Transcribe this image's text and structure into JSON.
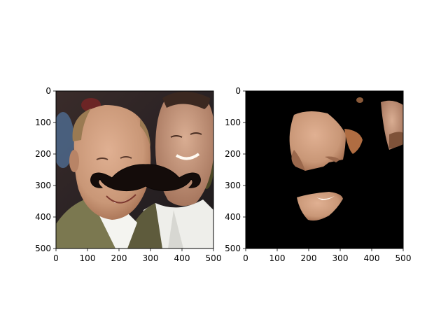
{
  "chart_data": [
    {
      "type": "image",
      "panel": "left",
      "content": "photo of two smiling men with a black cartoon mustache overlaid across the left man's face",
      "overlay": "mustache",
      "xlim": [
        0,
        500
      ],
      "ylim": [
        500,
        0
      ],
      "xticks": [
        0,
        100,
        200,
        300,
        400,
        500
      ],
      "yticks": [
        0,
        100,
        200,
        300,
        400,
        500
      ],
      "xtick_labels": [
        "0",
        "100",
        "200",
        "300",
        "400",
        "500"
      ],
      "ytick_labels": [
        "0",
        "100",
        "200",
        "300",
        "400",
        "500"
      ],
      "title": "",
      "xlabel": "",
      "ylabel": ""
    },
    {
      "type": "image",
      "panel": "right",
      "content": "segmentation mask: skin regions of the faces kept, everything else black; mustache area masked out",
      "background_color": "#000000",
      "xlim": [
        0,
        500
      ],
      "ylim": [
        500,
        0
      ],
      "xticks": [
        0,
        100,
        200,
        300,
        400,
        500
      ],
      "yticks": [
        0,
        100,
        200,
        300,
        400,
        500
      ],
      "xtick_labels": [
        "0",
        "100",
        "200",
        "300",
        "400",
        "500"
      ],
      "ytick_labels": [
        "0",
        "100",
        "200",
        "300",
        "400",
        "500"
      ],
      "title": "",
      "xlabel": "",
      "ylabel": ""
    }
  ],
  "colors": {
    "figure_bg": "#ffffff",
    "axes_edge": "#000000",
    "mask_bg": "#000000",
    "mustache": "#140c0a",
    "skin": "#c99777",
    "skin_shadow": "#a46e50",
    "suit": "#7b7850",
    "shirt": "#eeeeea"
  }
}
